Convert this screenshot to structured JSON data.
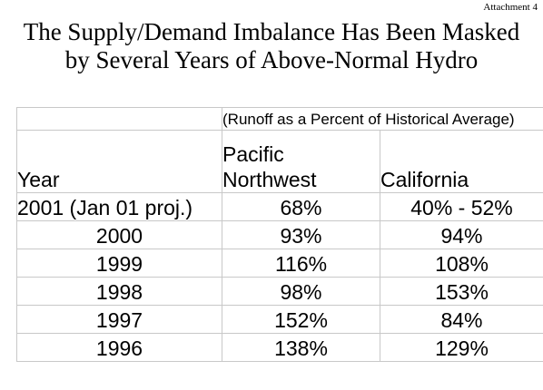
{
  "attachment": "Attachment 4",
  "title_line1": "The Supply/Demand Imbalance Has Been Masked",
  "title_line2": "by Several Years of Above-Normal Hydro",
  "table": {
    "note": "(Runoff as a Percent of Historical Average)",
    "headers": {
      "year": "Year",
      "pnw_line1": "Pacific",
      "pnw_line2": "Northwest",
      "california": "California"
    },
    "rows": [
      {
        "year": "2001 (Jan 01 proj.)",
        "pnw": "68%",
        "ca": "40% - 52%"
      },
      {
        "year": "2000",
        "pnw": "93%",
        "ca": "94%"
      },
      {
        "year": "1999",
        "pnw": "116%",
        "ca": "108%"
      },
      {
        "year": "1998",
        "pnw": "98%",
        "ca": "153%"
      },
      {
        "year": "1997",
        "pnw": "152%",
        "ca": "84%"
      },
      {
        "year": "1996",
        "pnw": "138%",
        "ca": "129%"
      }
    ]
  }
}
